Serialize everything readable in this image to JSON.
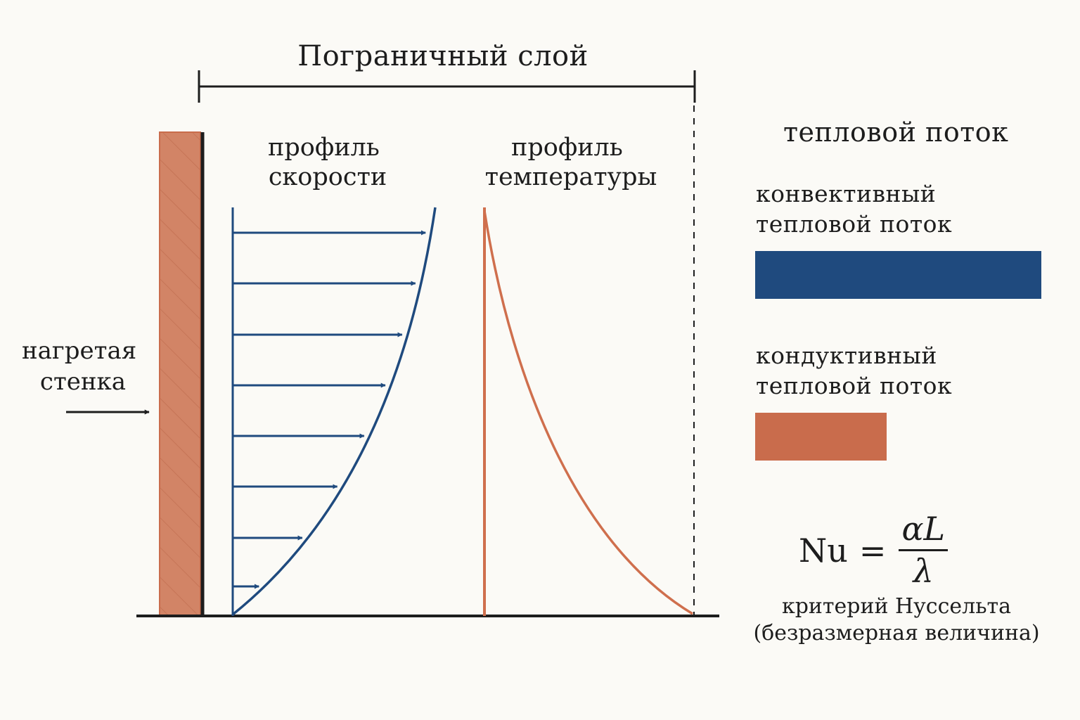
{
  "title": "Пограничный слой",
  "wall_label": [
    "нагретая",
    "стенка"
  ],
  "velocity_label": [
    "профиль",
    "скорости"
  ],
  "temperature_label": [
    "профиль",
    "температуры"
  ],
  "legend": {
    "heading": "тепловой поток",
    "convective": {
      "label": [
        "конвективный",
        "тепловой поток"
      ],
      "color": "#1f4a7e"
    },
    "conductive": {
      "label": [
        "кондуктивный",
        "тепловой поток"
      ],
      "color": "#c96c4c"
    }
  },
  "formula": {
    "lhs": "Nu",
    "equals": "=",
    "numerator": "αL",
    "denominator": "λ",
    "caption": [
      "критерий Нуссельта",
      "(безразмерная величина)"
    ]
  },
  "colors": {
    "velocity": "#1f4a7e",
    "temperature": "#cf6f4d",
    "wall_fill": "#d28466",
    "ink": "#1d1d1d"
  },
  "icons": [
    "arrow-right-icon",
    "velocity-vector-icon"
  ]
}
